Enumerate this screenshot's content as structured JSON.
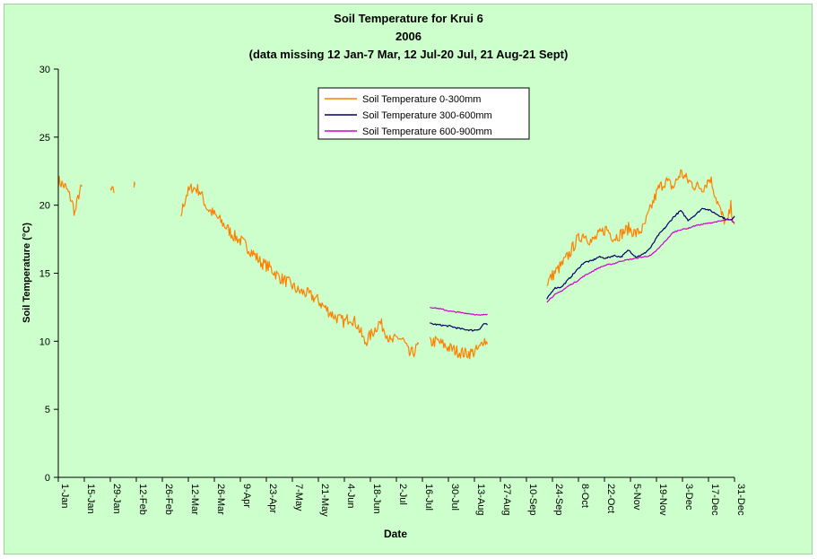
{
  "chart_data": {
    "type": "line",
    "title": "Soil Temperature for Krui 6",
    "subtitle": "2006",
    "subtitle2": "(data missing 12 Jan-7 Mar, 12 Jul-20 Jul, 21 Aug-21 Sept)",
    "xlabel": "Date",
    "ylabel": "Soil Temperature (°C)",
    "ylim": [
      0,
      30
    ],
    "xlim_day_of_year": [
      1,
      365
    ],
    "yticks": [
      0,
      5,
      10,
      15,
      20,
      25,
      30
    ],
    "xtick_labels": [
      "1-Jan",
      "15-Jan",
      "29-Jan",
      "12-Feb",
      "26-Feb",
      "12-Mar",
      "26-Mar",
      "9-Apr",
      "23-Apr",
      "7-May",
      "21-May",
      "4-Jun",
      "18-Jun",
      "2-Jul",
      "16-Jul",
      "30-Jul",
      "13-Aug",
      "27-Aug",
      "10-Sep",
      "24-Sep",
      "8-Oct",
      "22-Oct",
      "5-Nov",
      "19-Nov",
      "3-Dec",
      "17-Dec",
      "31-Dec"
    ],
    "grid": false,
    "legend_position": "top-center",
    "series": [
      {
        "name": "Soil Temperature  0-300mm",
        "color": "#ff8000",
        "noise": 0.45,
        "segments": [
          [
            [
              1,
              21.8
            ],
            [
              5,
              21.3
            ],
            [
              8,
              20.4
            ],
            [
              10,
              19.4
            ],
            [
              12,
              20.8
            ],
            [
              14,
              21.4
            ]
          ],
          [
            [
              29,
              21.1
            ],
            [
              31,
              20.9
            ]
          ],
          [
            [
              42,
              21.5
            ]
          ],
          [
            [
              67,
              19.3
            ],
            [
              70,
              20.8
            ],
            [
              73,
              21.3
            ],
            [
              77,
              21.1
            ],
            [
              81,
              19.8
            ],
            [
              85,
              19.3
            ],
            [
              90,
              18.6
            ],
            [
              95,
              17.8
            ],
            [
              100,
              17.3
            ],
            [
              105,
              16.6
            ],
            [
              110,
              15.8
            ],
            [
              115,
              15.4
            ],
            [
              120,
              14.7
            ],
            [
              125,
              14.3
            ],
            [
              130,
              13.7
            ],
            [
              135,
              13.5
            ],
            [
              140,
              13.1
            ],
            [
              145,
              12.4
            ],
            [
              150,
              11.8
            ],
            [
              155,
              11.4
            ],
            [
              158,
              11.8
            ],
            [
              162,
              11.2
            ],
            [
              166,
              9.9
            ],
            [
              170,
              10.6
            ],
            [
              174,
              11.4
            ],
            [
              177,
              10.8
            ],
            [
              180,
              9.9
            ],
            [
              184,
              10.3
            ],
            [
              187,
              10.0
            ],
            [
              190,
              9.0
            ],
            [
              193,
              9.3
            ],
            [
              195,
              9.8
            ]
          ],
          [
            [
              201,
              9.9
            ],
            [
              205,
              10.0
            ],
            [
              210,
              9.6
            ],
            [
              215,
              9.3
            ],
            [
              220,
              9.1
            ],
            [
              225,
              9.2
            ],
            [
              228,
              9.5
            ],
            [
              230,
              10.2
            ],
            [
              232,
              9.8
            ]
          ],
          [
            [
              264,
              14.3
            ],
            [
              268,
              15.0
            ],
            [
              272,
              15.6
            ],
            [
              276,
              16.4
            ],
            [
              280,
              17.4
            ],
            [
              284,
              17.9
            ],
            [
              288,
              17.3
            ],
            [
              292,
              17.8
            ],
            [
              296,
              18.3
            ],
            [
              300,
              17.6
            ],
            [
              304,
              17.9
            ],
            [
              308,
              18.3
            ],
            [
              312,
              17.9
            ],
            [
              316,
              18.3
            ],
            [
              320,
              19.8
            ],
            [
              324,
              21.2
            ],
            [
              328,
              21.8
            ],
            [
              332,
              21.3
            ],
            [
              336,
              22.4
            ],
            [
              340,
              21.8
            ],
            [
              344,
              21.4
            ],
            [
              348,
              21.3
            ],
            [
              352,
              22.0
            ],
            [
              355,
              20.6
            ],
            [
              358,
              19.3
            ],
            [
              361,
              18.6
            ],
            [
              363,
              19.9
            ],
            [
              365,
              18.6
            ]
          ]
        ]
      },
      {
        "name": "Soil Temperature 300-600mm",
        "color": "#000066",
        "noise": 0.06,
        "segments": [
          [
            [
              201,
              11.3
            ],
            [
              206,
              11.2
            ],
            [
              212,
              11.1
            ],
            [
              218,
              10.9
            ],
            [
              224,
              10.8
            ],
            [
              228,
              10.9
            ],
            [
              230,
              11.3
            ],
            [
              232,
              11.2
            ]
          ],
          [
            [
              264,
              13.1
            ],
            [
              268,
              13.9
            ],
            [
              272,
              14.0
            ],
            [
              276,
              14.6
            ],
            [
              280,
              15.2
            ],
            [
              284,
              15.8
            ],
            [
              288,
              15.9
            ],
            [
              292,
              16.2
            ],
            [
              296,
              16.1
            ],
            [
              300,
              16.3
            ],
            [
              304,
              16.2
            ],
            [
              308,
              16.7
            ],
            [
              312,
              16.2
            ],
            [
              316,
              16.4
            ],
            [
              320,
              16.9
            ],
            [
              324,
              17.8
            ],
            [
              328,
              18.4
            ],
            [
              332,
              19.1
            ],
            [
              336,
              19.6
            ],
            [
              340,
              18.9
            ],
            [
              344,
              19.3
            ],
            [
              348,
              19.8
            ],
            [
              352,
              19.6
            ],
            [
              356,
              19.3
            ],
            [
              360,
              19.0
            ],
            [
              363,
              18.9
            ],
            [
              365,
              19.2
            ]
          ]
        ]
      },
      {
        "name": "Soil Temperature 600-900mm",
        "color": "#cc00cc",
        "noise": 0.04,
        "segments": [
          [
            [
              201,
              12.5
            ],
            [
              206,
              12.4
            ],
            [
              212,
              12.2
            ],
            [
              218,
              12.1
            ],
            [
              224,
              12.0
            ],
            [
              228,
              11.9
            ],
            [
              232,
              12.0
            ]
          ],
          [
            [
              264,
              12.9
            ],
            [
              268,
              13.4
            ],
            [
              272,
              13.7
            ],
            [
              276,
              14.1
            ],
            [
              280,
              14.4
            ],
            [
              284,
              14.8
            ],
            [
              288,
              15.1
            ],
            [
              292,
              15.4
            ],
            [
              296,
              15.6
            ],
            [
              300,
              15.7
            ],
            [
              304,
              15.9
            ],
            [
              308,
              16.0
            ],
            [
              312,
              16.1
            ],
            [
              316,
              16.2
            ],
            [
              320,
              16.3
            ],
            [
              324,
              16.8
            ],
            [
              328,
              17.4
            ],
            [
              332,
              18.0
            ],
            [
              336,
              18.2
            ],
            [
              340,
              18.3
            ],
            [
              344,
              18.5
            ],
            [
              348,
              18.6
            ],
            [
              352,
              18.7
            ],
            [
              356,
              18.8
            ],
            [
              360,
              18.9
            ],
            [
              363,
              18.9
            ],
            [
              365,
              18.7
            ]
          ]
        ]
      }
    ]
  }
}
